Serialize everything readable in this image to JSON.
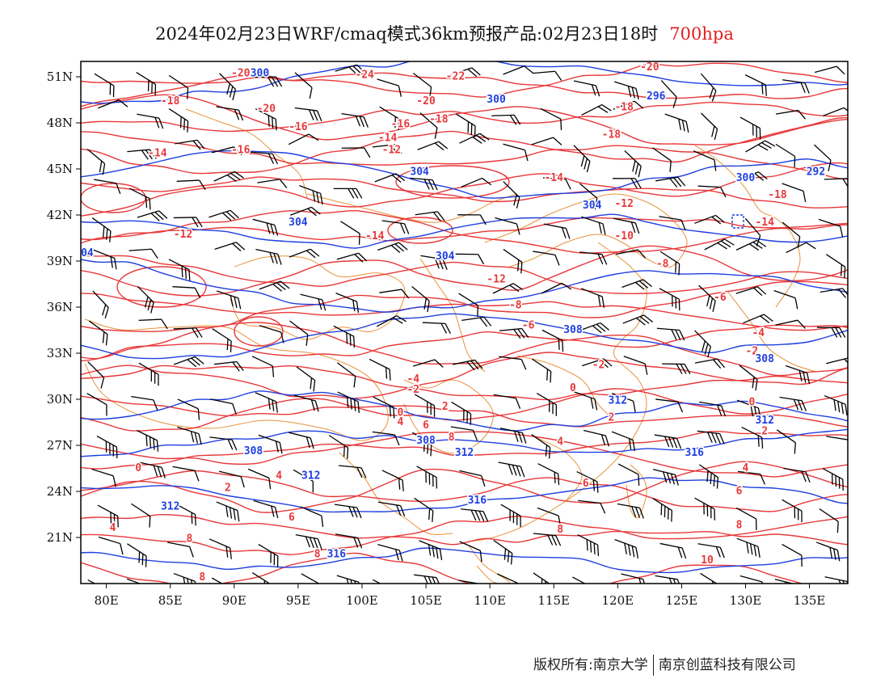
{
  "title": {
    "main": "2024年02月23日WRF/cmaq模式36km预报产品:02月23日18时",
    "level": "700hpa"
  },
  "axes": {
    "lon_labels": [
      "80E",
      "85E",
      "90E",
      "95E",
      "100E",
      "105E",
      "110E",
      "115E",
      "120E",
      "125E",
      "130E",
      "135E"
    ],
    "lon_values": [
      80,
      85,
      90,
      95,
      100,
      105,
      110,
      115,
      120,
      125,
      130,
      135
    ],
    "lat_labels": [
      "51N",
      "48N",
      "45N",
      "42N",
      "39N",
      "36N",
      "33N",
      "30N",
      "27N",
      "24N",
      "21N"
    ],
    "lat_values": [
      51,
      48,
      45,
      42,
      39,
      36,
      33,
      30,
      27,
      24,
      21
    ],
    "lon_range": [
      78,
      138
    ],
    "lat_range": [
      18,
      52
    ]
  },
  "colors": {
    "temperature": "#e8383a",
    "height": "#1f3fe0",
    "wind": "#000000",
    "boundary": "#e8923a",
    "level": "#e02020"
  },
  "temperature_labels": [
    {
      "text": "-20",
      "lon": 90.5,
      "lat": 51.2
    },
    {
      "text": "-24",
      "lon": 100.2,
      "lat": 51.1
    },
    {
      "text": "-22",
      "lon": 107.3,
      "lat": 51
    },
    {
      "text": "-20",
      "lon": 122.5,
      "lat": 51.6
    },
    {
      "text": "-18",
      "lon": 85,
      "lat": 49.4
    },
    {
      "text": "-20",
      "lon": 92.5,
      "lat": 48.9
    },
    {
      "text": "-20",
      "lon": 105,
      "lat": 49.4
    },
    {
      "text": "-18",
      "lon": 106,
      "lat": 48.2
    },
    {
      "text": "-18",
      "lon": 120.5,
      "lat": 49
    },
    {
      "text": "-16",
      "lon": 95,
      "lat": 47.7
    },
    {
      "text": "-16",
      "lon": 103,
      "lat": 47.9
    },
    {
      "text": "-14",
      "lon": 102,
      "lat": 47
    },
    {
      "text": "-18",
      "lon": 119.5,
      "lat": 47.2
    },
    {
      "text": "-16",
      "lon": 90.5,
      "lat": 46.2
    },
    {
      "text": "-12",
      "lon": 102.3,
      "lat": 46.2
    },
    {
      "text": "-14",
      "lon": 84,
      "lat": 46
    },
    {
      "text": "-14",
      "lon": 115,
      "lat": 44.4
    },
    {
      "text": "-18",
      "lon": 132.5,
      "lat": 43.3
    },
    {
      "text": "-12",
      "lon": 120.5,
      "lat": 42.7
    },
    {
      "text": "-14",
      "lon": 131.5,
      "lat": 41.5
    },
    {
      "text": "-12",
      "lon": 86,
      "lat": 40.7
    },
    {
      "text": "-14",
      "lon": 101,
      "lat": 40.6
    },
    {
      "text": "-10",
      "lon": 120.5,
      "lat": 40.6
    },
    {
      "text": "-12",
      "lon": 110.5,
      "lat": 37.8
    },
    {
      "text": "-8",
      "lon": 123.5,
      "lat": 38.8
    },
    {
      "text": "-8",
      "lon": 112,
      "lat": 36.1
    },
    {
      "text": "-6",
      "lon": 128,
      "lat": 36.6
    },
    {
      "text": "-6",
      "lon": 113,
      "lat": 34.8
    },
    {
      "text": "-4",
      "lon": 131,
      "lat": 34.3
    },
    {
      "text": "-2",
      "lon": 130.5,
      "lat": 33.1
    },
    {
      "text": "-2",
      "lon": 118.5,
      "lat": 32.2
    },
    {
      "text": "-4",
      "lon": 104,
      "lat": 31.3
    },
    {
      "text": "-2",
      "lon": 104,
      "lat": 30.6
    },
    {
      "text": "0",
      "lon": 116.5,
      "lat": 30.7
    },
    {
      "text": "0",
      "lon": 130.5,
      "lat": 29.8
    },
    {
      "text": "2",
      "lon": 106.5,
      "lat": 29.5
    },
    {
      "text": "2",
      "lon": 119.5,
      "lat": 28.8
    },
    {
      "text": "0",
      "lon": 103,
      "lat": 29.1
    },
    {
      "text": "4",
      "lon": 103,
      "lat": 28.5
    },
    {
      "text": "6",
      "lon": 105,
      "lat": 28.3
    },
    {
      "text": "2",
      "lon": 131.5,
      "lat": 27.9
    },
    {
      "text": "8",
      "lon": 107,
      "lat": 27.5
    },
    {
      "text": "4",
      "lon": 115.5,
      "lat": 27.2
    },
    {
      "text": "0",
      "lon": 82.5,
      "lat": 25.5
    },
    {
      "text": "4",
      "lon": 130,
      "lat": 25.5
    },
    {
      "text": "4",
      "lon": 93.5,
      "lat": 25
    },
    {
      "text": "2",
      "lon": 89.5,
      "lat": 24.2
    },
    {
      "text": "6",
      "lon": 117.5,
      "lat": 24.5
    },
    {
      "text": "6",
      "lon": 129.5,
      "lat": 24
    },
    {
      "text": "4",
      "lon": 80.5,
      "lat": 21.6
    },
    {
      "text": "6",
      "lon": 94.5,
      "lat": 22.3
    },
    {
      "text": "8",
      "lon": 129.5,
      "lat": 21.8
    },
    {
      "text": "8",
      "lon": 86.5,
      "lat": 20.9
    },
    {
      "text": "8",
      "lon": 115.5,
      "lat": 21.5
    },
    {
      "text": "8",
      "lon": 96.5,
      "lat": 19.9
    },
    {
      "text": "10",
      "lon": 127,
      "lat": 19.5
    },
    {
      "text": "8",
      "lon": 87.5,
      "lat": 18.4
    }
  ],
  "height_labels": [
    {
      "text": "300",
      "lon": 92,
      "lat": 51.2
    },
    {
      "text": "300",
      "lon": 110.5,
      "lat": 49.5
    },
    {
      "text": "296",
      "lon": 123,
      "lat": 49.7
    },
    {
      "text": "304",
      "lon": 104.5,
      "lat": 44.8
    },
    {
      "text": "300",
      "lon": 130,
      "lat": 44.4
    },
    {
      "text": "292",
      "lon": 135.5,
      "lat": 44.8
    },
    {
      "text": "304",
      "lon": 95,
      "lat": 41.5
    },
    {
      "text": "304",
      "lon": 118,
      "lat": 42.6
    },
    {
      "text": "304",
      "lon": 106.5,
      "lat": 39.3
    },
    {
      "text": "04",
      "lon": 78.5,
      "lat": 39.5
    },
    {
      "text": "308",
      "lon": 116.5,
      "lat": 34.5
    },
    {
      "text": "308",
      "lon": 131.5,
      "lat": 32.6
    },
    {
      "text": "312",
      "lon": 120,
      "lat": 29.9
    },
    {
      "text": "312",
      "lon": 131.5,
      "lat": 28.6
    },
    {
      "text": "308",
      "lon": 105,
      "lat": 27.3
    },
    {
      "text": "312",
      "lon": 108,
      "lat": 26.5
    },
    {
      "text": "308",
      "lon": 91.5,
      "lat": 26.6
    },
    {
      "text": "316",
      "lon": 126,
      "lat": 26.5
    },
    {
      "text": "312",
      "lon": 96,
      "lat": 25
    },
    {
      "text": "316",
      "lon": 109,
      "lat": 23.4
    },
    {
      "text": "312",
      "lon": 85,
      "lat": 23
    },
    {
      "text": "316",
      "lon": 98,
      "lat": 19.9
    }
  ],
  "footer": {
    "copyright": "版权所有:南京大学",
    "company": "南京创蓝科技有限公司"
  }
}
